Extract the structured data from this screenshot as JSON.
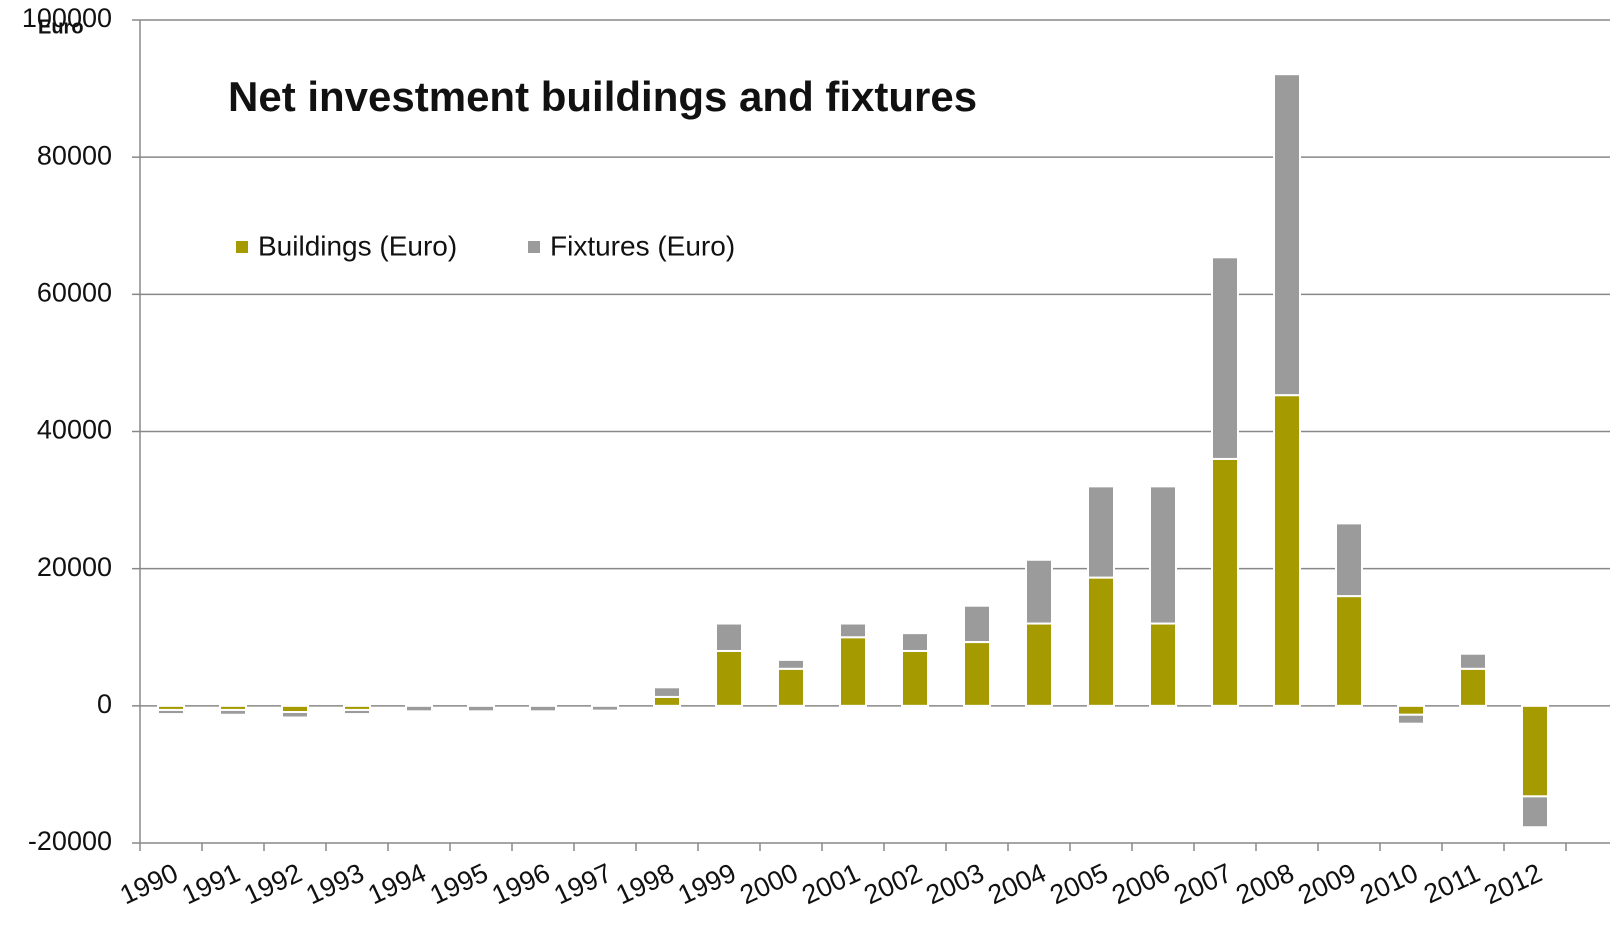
{
  "chart_data": {
    "type": "stacked_bar",
    "title": "Net investment buildings and fixtures",
    "ylabel": "Euro",
    "categories": [
      "1990",
      "1991",
      "1992",
      "1993",
      "1994",
      "1995",
      "1996",
      "1997",
      "1998",
      "1999",
      "2000",
      "2001",
      "2002",
      "2003",
      "2004",
      "2005",
      "2006",
      "2007",
      "2008",
      "2009",
      "2010",
      "2011",
      "2012"
    ],
    "series": [
      {
        "name": "Buildings (Euro)",
        "color": "#a59a00",
        "values": [
          -600,
          -600,
          -900,
          -600,
          0,
          0,
          0,
          0,
          1300,
          8000,
          5400,
          10000,
          8000,
          9300,
          12000,
          18700,
          12000,
          36000,
          45300,
          16000,
          -1300,
          5400,
          -13200
        ]
      },
      {
        "name": "Fixtures (Euro)",
        "color": "#9b9b9b",
        "values": [
          -600,
          -700,
          -800,
          -600,
          -800,
          -800,
          -800,
          -700,
          1400,
          4000,
          1300,
          2000,
          2600,
          5300,
          9300,
          13300,
          20000,
          29400,
          46800,
          10600,
          -1300,
          2200,
          -4500
        ]
      }
    ],
    "ylim": [
      -20000,
      100000
    ],
    "yticks": [
      -20000,
      0,
      20000,
      40000,
      60000,
      80000,
      100000
    ],
    "grid": true,
    "legend": "top"
  }
}
